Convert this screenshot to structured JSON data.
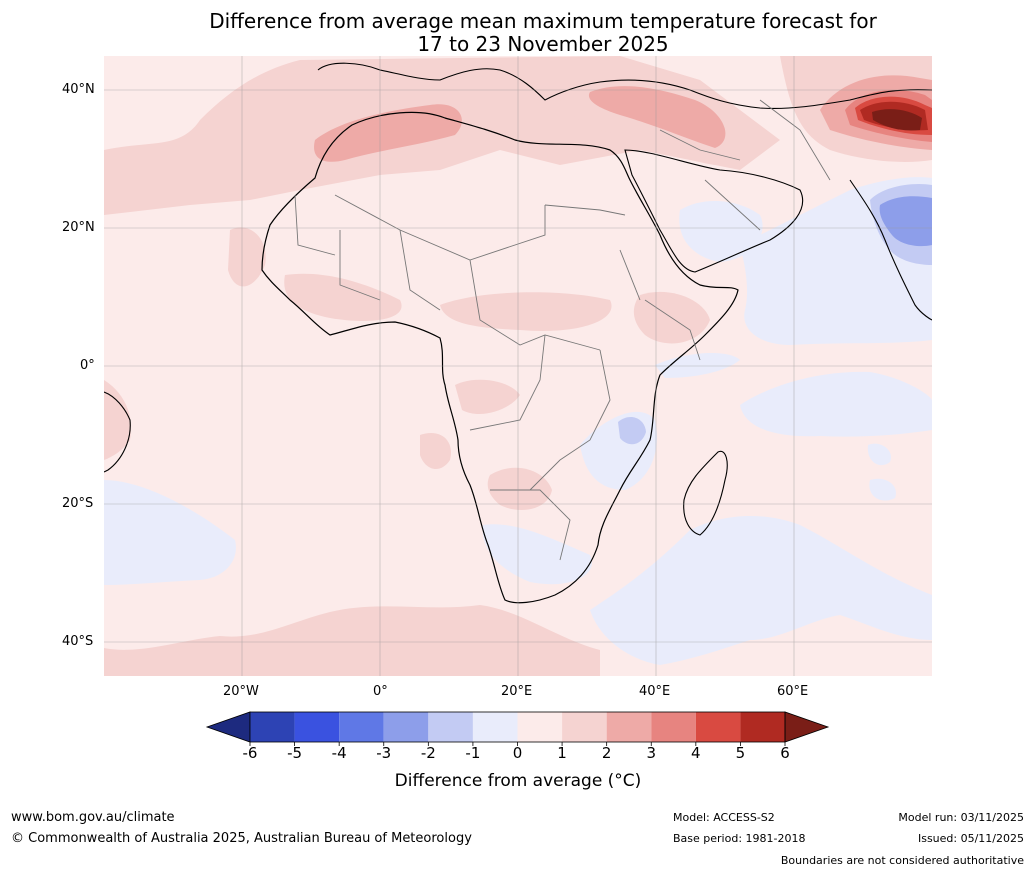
{
  "title": {
    "line1": "Difference from average mean maximum temperature forecast for",
    "line2": "17 to 23 November 2025"
  },
  "axes": {
    "lat_labels": [
      "40°N",
      "20°N",
      "0°",
      "20°S",
      "40°S"
    ],
    "lon_labels": [
      "20°W",
      "0°",
      "20°E",
      "40°E",
      "60°E"
    ]
  },
  "colorbar": {
    "title": "Difference from average ($^\\circ$C)",
    "title_display": "Difference from average (°C)",
    "ticks": [
      "-6",
      "-5",
      "-4",
      "-3",
      "-2",
      "-1",
      "0",
      "1",
      "2",
      "3",
      "4",
      "5",
      "6"
    ],
    "colors": [
      "#1d2a7f",
      "#2d43b4",
      "#3a52e0",
      "#5f78e6",
      "#8d9eea",
      "#c3cbf3",
      "#e9ecfb",
      "#fcebea",
      "#f5d3d1",
      "#eeaaa7",
      "#e78480",
      "#d94a41",
      "#b02a22",
      "#7a1e17"
    ]
  },
  "footer": {
    "website": "www.bom.gov.au/climate",
    "copyright": "© Commonwealth of Australia 2025, Australian Bureau of Meteorology",
    "model": "Model: ACCESS-S2",
    "base_period": "Base period: 1981-2018",
    "model_run": "Model run: 03/11/2025",
    "issued": "Issued: 05/11/2025",
    "disclaimer": "Boundaries are not considered authoritative"
  }
}
